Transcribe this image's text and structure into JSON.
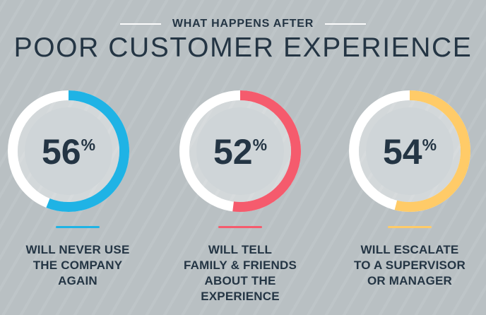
{
  "header": {
    "kicker": "WHAT HAPPENS AFTER",
    "title": "POOR CUSTOMER EXPERIENCE"
  },
  "colors": {
    "background": "#b9c0c3",
    "text": "#243544",
    "track": "#ffffff",
    "inner": "#cfd5d8",
    "blue": "#1fb3e5",
    "red": "#f55b6d",
    "yellow": "#ffcb68"
  },
  "chart_data": {
    "type": "pie",
    "series": [
      {
        "value": 56,
        "label": "56",
        "unit": "%",
        "color": "#1fb3e5",
        "description": "WILL NEVER USE\nTHE COMPANY\nAGAIN"
      },
      {
        "value": 52,
        "label": "52",
        "unit": "%",
        "color": "#f55b6d",
        "description": "WILL TELL\nFAMILY & FRIENDS\nABOUT THE\nEXPERIENCE"
      },
      {
        "value": 54,
        "label": "54",
        "unit": "%",
        "color": "#ffcb68",
        "description": "WILL ESCALATE\nTO A SUPERVISOR\nOR MANAGER"
      }
    ]
  }
}
